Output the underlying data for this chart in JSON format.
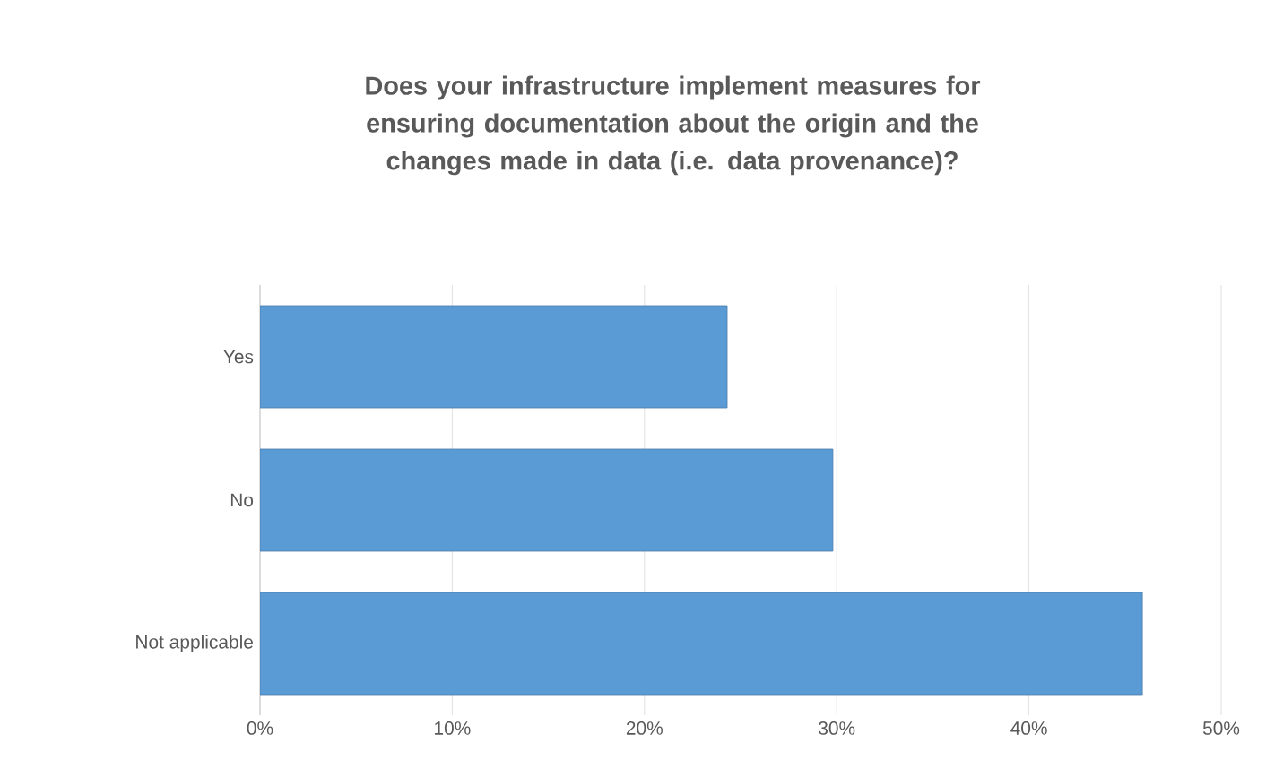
{
  "chart_data": {
    "type": "bar",
    "orientation": "horizontal",
    "title": "Does your infrastructure implement measures for ensuring documentation about the origin and the changes made in data (i.e. data provenance)?",
    "categories": [
      "Yes",
      "No",
      "Not applicable"
    ],
    "values": [
      24.3,
      29.8,
      45.9
    ],
    "color": "#5b9bd5",
    "xlim": [
      0,
      50
    ],
    "xticks": [
      {
        "value": 0,
        "label": "0%"
      },
      {
        "value": 10,
        "label": "10%"
      },
      {
        "value": 20,
        "label": "20%"
      },
      {
        "value": 30,
        "label": "30%"
      },
      {
        "value": 40,
        "label": "40%"
      },
      {
        "value": 50,
        "label": "50%"
      }
    ],
    "grid": "x"
  }
}
